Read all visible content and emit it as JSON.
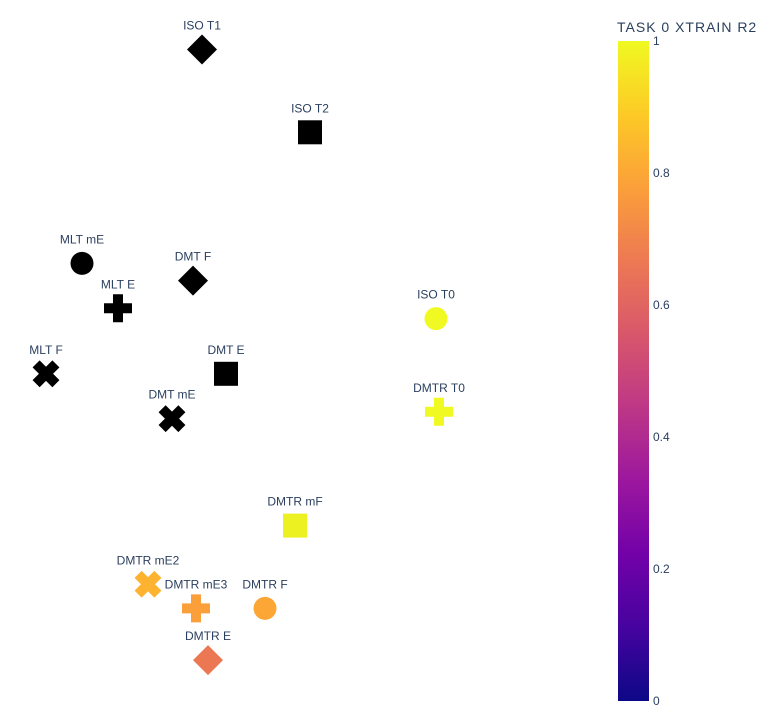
{
  "chart_data": {
    "type": "scatter",
    "title": "",
    "xlabel": "",
    "ylabel": "",
    "xlim": [
      0,
      10
    ],
    "ylim": [
      0,
      10
    ],
    "axes_visible": false,
    "grid": false,
    "colorscale": "plasma",
    "colorbar": {
      "title": "TASK 0 XTRAIN R2",
      "range": [
        0,
        1
      ],
      "ticks": [
        "0",
        "0.2",
        "0.4",
        "0.6",
        "0.8",
        "1"
      ],
      "tick_values": [
        0,
        0.2,
        0.4,
        0.6,
        0.8,
        1
      ]
    },
    "points": [
      {
        "label": "ISO T1",
        "x": 3.2,
        "y": 9.5,
        "symbol": "diamond",
        "value": null,
        "color": "#000000"
      },
      {
        "label": "ISO T2",
        "x": 5.0,
        "y": 8.3,
        "symbol": "square",
        "value": null,
        "color": "#000000"
      },
      {
        "label": "MLT mE",
        "x": 1.2,
        "y": 6.4,
        "symbol": "circle",
        "value": null,
        "color": "#000000"
      },
      {
        "label": "DMT F",
        "x": 3.05,
        "y": 6.15,
        "symbol": "diamond",
        "value": null,
        "color": "#000000"
      },
      {
        "label": "MLT E",
        "x": 1.8,
        "y": 5.75,
        "symbol": "cross",
        "value": null,
        "color": "#000000"
      },
      {
        "label": "ISO T0",
        "x": 7.1,
        "y": 5.6,
        "symbol": "circle",
        "value": 0.98,
        "color": "#f0f921"
      },
      {
        "label": "MLT F",
        "x": 0.6,
        "y": 4.8,
        "symbol": "x",
        "value": null,
        "color": "#000000"
      },
      {
        "label": "DMT E",
        "x": 3.6,
        "y": 4.8,
        "symbol": "square",
        "value": null,
        "color": "#000000"
      },
      {
        "label": "DMT mE",
        "x": 2.7,
        "y": 4.15,
        "symbol": "x",
        "value": null,
        "color": "#000000"
      },
      {
        "label": "DMTR T0",
        "x": 7.15,
        "y": 4.25,
        "symbol": "cross",
        "value": 0.98,
        "color": "#f0f921"
      },
      {
        "label": "DMTR mF",
        "x": 4.75,
        "y": 2.6,
        "symbol": "square",
        "value": 0.96,
        "color": "#ecf122"
      },
      {
        "label": "DMTR mE2",
        "x": 2.3,
        "y": 1.75,
        "symbol": "x",
        "value": 0.85,
        "color": "#fdb32f"
      },
      {
        "label": "DMTR mE3",
        "x": 3.1,
        "y": 1.4,
        "symbol": "cross",
        "value": 0.78,
        "color": "#fb9f3a"
      },
      {
        "label": "DMTR F",
        "x": 4.25,
        "y": 1.4,
        "symbol": "circle",
        "value": 0.8,
        "color": "#fca636"
      },
      {
        "label": "DMTR E",
        "x": 3.3,
        "y": 0.65,
        "symbol": "diamond",
        "value": 0.68,
        "color": "#ec7853"
      }
    ]
  }
}
